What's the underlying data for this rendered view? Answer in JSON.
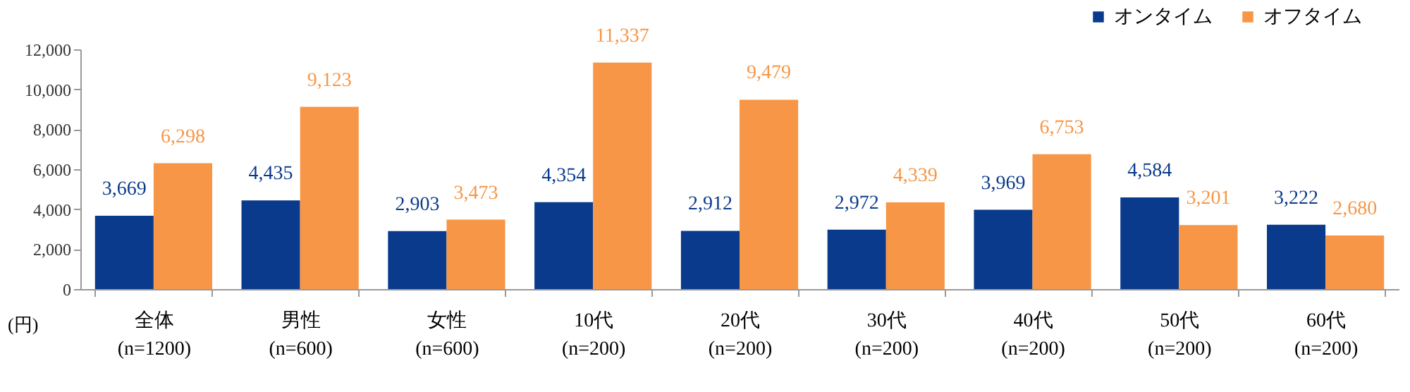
{
  "chart_data": {
    "type": "bar",
    "ylabel": "(円)",
    "categories": [
      "全体\n(n=1200)",
      "男性\n(n=600)",
      "女性\n(n=600)",
      "10代\n(n=200)",
      "20代\n(n=200)",
      "30代\n(n=200)",
      "40代\n(n=200)",
      "50代\n(n=200)",
      "60代\n(n=200)"
    ],
    "series": [
      {
        "name": "オンタイム",
        "color": "#0a3a8c",
        "values": [
          3669,
          4435,
          2903,
          4354,
          2912,
          2972,
          3969,
          4584,
          3222
        ],
        "value_labels": [
          "3,669",
          "4,435",
          "2,903",
          "4,354",
          "2,912",
          "2,972",
          "3,969",
          "4,584",
          "3,222"
        ]
      },
      {
        "name": "オフタイム",
        "color": "#f79646",
        "values": [
          6298,
          9123,
          3473,
          11337,
          9479,
          4339,
          6753,
          3201,
          2680
        ],
        "value_labels": [
          "6,298",
          "9,123",
          "3,473",
          "11,337",
          "9,479",
          "4,339",
          "6,753",
          "3,201",
          "2,680"
        ]
      }
    ],
    "ylim": [
      0,
      12000
    ],
    "yticks": [
      0,
      {
        "value": 2000,
        "label": "2,000"
      },
      {
        "value": 4000,
        "label": "4,000"
      },
      {
        "value": 6000,
        "label": "6,000"
      },
      {
        "value": 8000,
        "label": "8,000"
      },
      {
        "value": 10000,
        "label": "10,000"
      },
      {
        "value": 12000,
        "label": "12,000"
      }
    ],
    "grid": false,
    "legend": "top right"
  }
}
